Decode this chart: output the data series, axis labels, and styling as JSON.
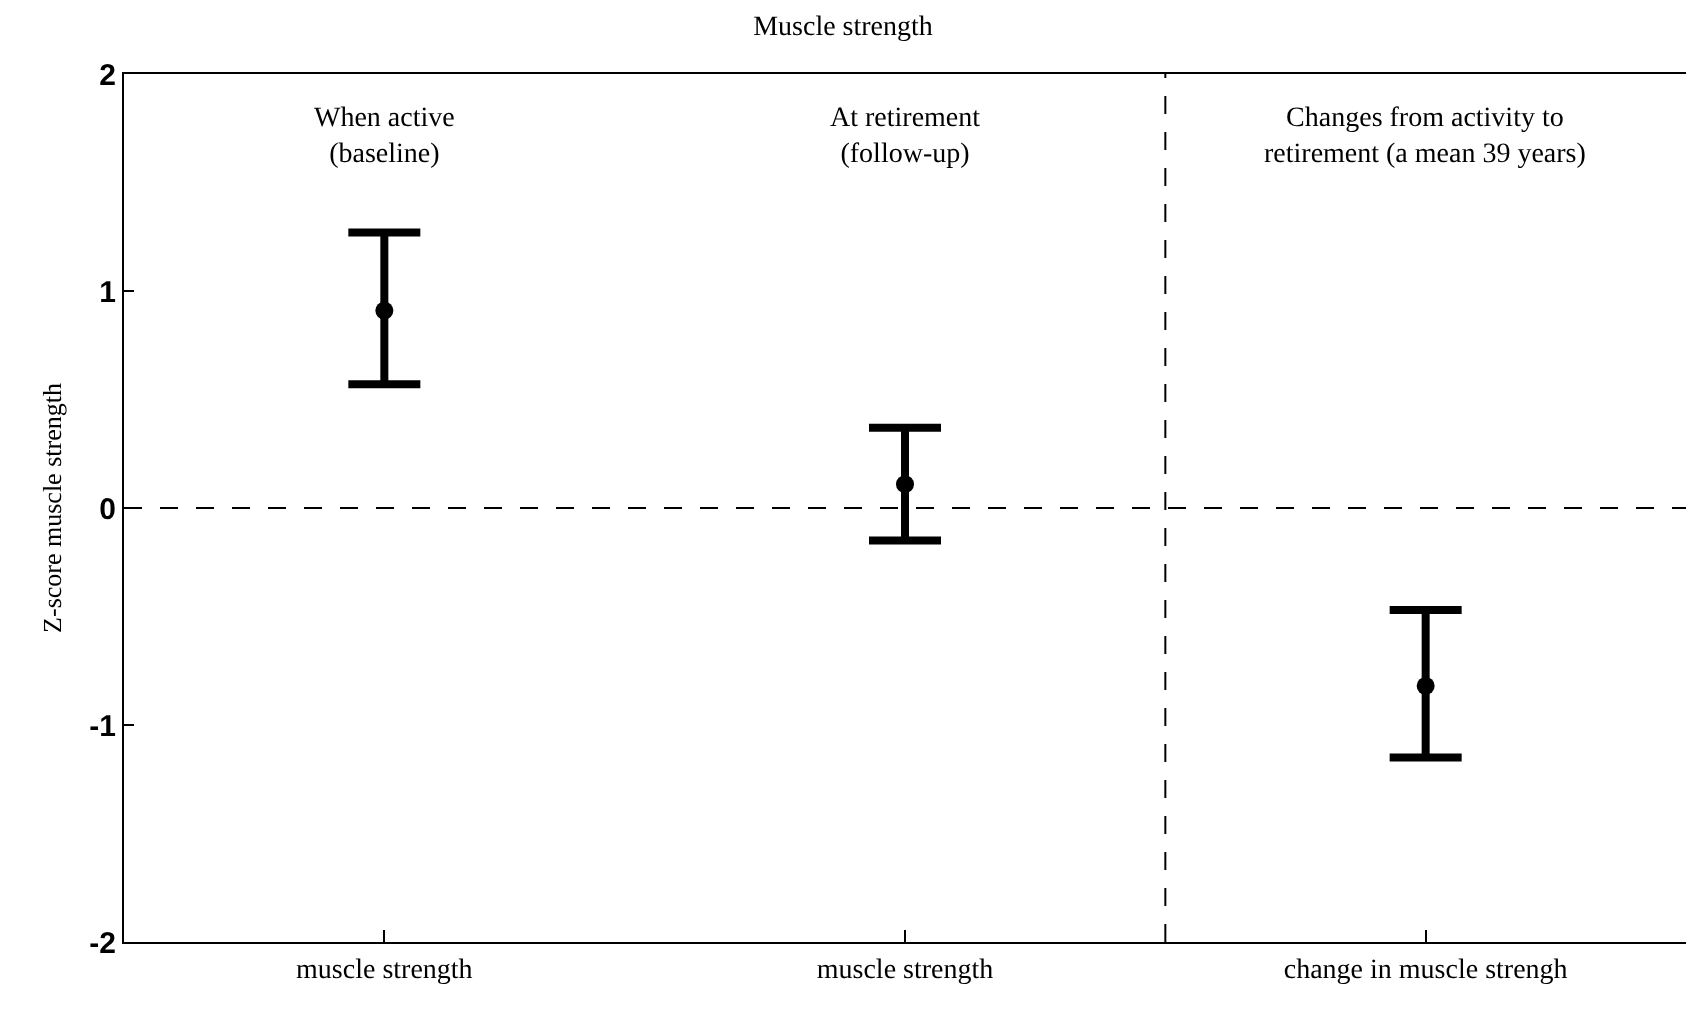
{
  "chart_data": {
    "type": "scatter",
    "title": "Muscle strength",
    "ylabel": "Z-score muscle strength",
    "categories": [
      "muscle strength",
      "muscle strength",
      "change in muscle strengh"
    ],
    "values": [
      0.91,
      0.11,
      -0.82
    ],
    "errors": [
      [
        0.57,
        1.27
      ],
      [
        -0.15,
        0.37
      ],
      [
        -1.15,
        -0.47
      ]
    ],
    "color": "#000000",
    "marker": "circle",
    "ylim": [
      -2,
      2
    ],
    "yticks": [
      -2,
      -1,
      0,
      1,
      2
    ],
    "grid": false,
    "legend": false,
    "annotations": [
      "When active\n(baseline)",
      "At retirement\n(follow-up)",
      "Changes from activity to\nretirement (a mean 39 years)"
    ],
    "ref_lines": [
      {
        "axis": "y",
        "value": 0,
        "line_style": "dashed",
        "color": "#000000"
      }
    ]
  }
}
